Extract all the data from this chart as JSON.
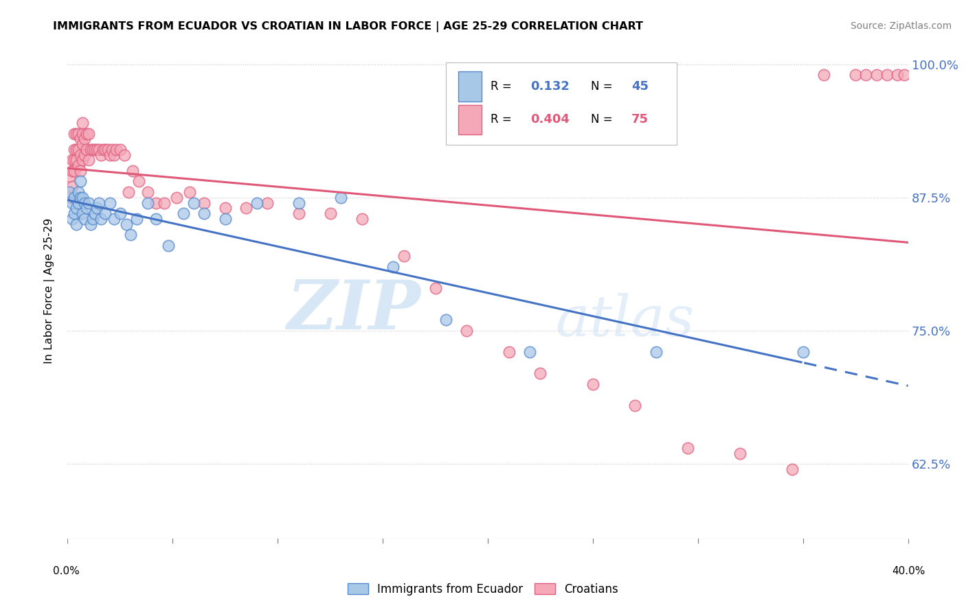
{
  "title": "IMMIGRANTS FROM ECUADOR VS CROATIAN IN LABOR FORCE | AGE 25-29 CORRELATION CHART",
  "source": "Source: ZipAtlas.com",
  "ylabel": "In Labor Force | Age 25-29",
  "y_ticks": [
    0.625,
    0.75,
    0.875,
    1.0
  ],
  "y_tick_labels": [
    "62.5%",
    "75.0%",
    "87.5%",
    "100.0%"
  ],
  "legend_label_blue": "Immigrants from Ecuador",
  "legend_label_pink": "Croatians",
  "R_blue": "0.132",
  "N_blue": "45",
  "R_pink": "0.404",
  "N_pink": "75",
  "color_blue_fill": "#A8C8E8",
  "color_pink_fill": "#F4A8B8",
  "color_blue_edge": "#5588CC",
  "color_pink_edge": "#E06080",
  "color_blue_line": "#4472C4",
  "color_pink_line": "#E05878",
  "color_blue_text": "#4472C4",
  "color_pink_text": "#E05878",
  "blue_scatter_x": [
    0.001,
    0.002,
    0.002,
    0.003,
    0.003,
    0.004,
    0.004,
    0.005,
    0.005,
    0.006,
    0.006,
    0.007,
    0.007,
    0.008,
    0.008,
    0.009,
    0.01,
    0.011,
    0.012,
    0.013,
    0.014,
    0.015,
    0.016,
    0.018,
    0.02,
    0.022,
    0.025,
    0.028,
    0.03,
    0.033,
    0.038,
    0.042,
    0.048,
    0.055,
    0.06,
    0.065,
    0.075,
    0.09,
    0.11,
    0.13,
    0.155,
    0.18,
    0.22,
    0.28,
    0.35
  ],
  "blue_scatter_y": [
    0.88,
    0.87,
    0.855,
    0.86,
    0.875,
    0.865,
    0.85,
    0.88,
    0.87,
    0.89,
    0.875,
    0.86,
    0.875,
    0.855,
    0.87,
    0.865,
    0.87,
    0.85,
    0.855,
    0.86,
    0.865,
    0.87,
    0.855,
    0.86,
    0.87,
    0.855,
    0.86,
    0.85,
    0.84,
    0.855,
    0.87,
    0.855,
    0.83,
    0.86,
    0.87,
    0.86,
    0.855,
    0.87,
    0.87,
    0.875,
    0.81,
    0.76,
    0.73,
    0.73,
    0.73
  ],
  "pink_scatter_x": [
    0.001,
    0.001,
    0.002,
    0.002,
    0.002,
    0.003,
    0.003,
    0.003,
    0.003,
    0.004,
    0.004,
    0.004,
    0.005,
    0.005,
    0.005,
    0.006,
    0.006,
    0.006,
    0.007,
    0.007,
    0.007,
    0.007,
    0.008,
    0.008,
    0.009,
    0.009,
    0.01,
    0.01,
    0.011,
    0.012,
    0.013,
    0.014,
    0.015,
    0.016,
    0.017,
    0.018,
    0.019,
    0.02,
    0.021,
    0.022,
    0.023,
    0.025,
    0.027,
    0.029,
    0.031,
    0.034,
    0.038,
    0.042,
    0.046,
    0.052,
    0.058,
    0.065,
    0.075,
    0.085,
    0.095,
    0.11,
    0.125,
    0.14,
    0.16,
    0.175,
    0.19,
    0.21,
    0.225,
    0.25,
    0.27,
    0.295,
    0.32,
    0.345,
    0.36,
    0.375,
    0.38,
    0.385,
    0.39,
    0.395,
    0.398
  ],
  "pink_scatter_y": [
    0.875,
    0.895,
    0.885,
    0.9,
    0.91,
    0.9,
    0.91,
    0.92,
    0.935,
    0.91,
    0.92,
    0.935,
    0.905,
    0.92,
    0.935,
    0.9,
    0.915,
    0.93,
    0.91,
    0.925,
    0.935,
    0.945,
    0.915,
    0.93,
    0.92,
    0.935,
    0.91,
    0.935,
    0.92,
    0.92,
    0.92,
    0.92,
    0.92,
    0.915,
    0.92,
    0.92,
    0.92,
    0.915,
    0.92,
    0.915,
    0.92,
    0.92,
    0.915,
    0.88,
    0.9,
    0.89,
    0.88,
    0.87,
    0.87,
    0.875,
    0.88,
    0.87,
    0.865,
    0.865,
    0.87,
    0.86,
    0.86,
    0.855,
    0.82,
    0.79,
    0.75,
    0.73,
    0.71,
    0.7,
    0.68,
    0.64,
    0.635,
    0.62,
    0.99,
    0.99,
    0.99,
    0.99,
    0.99,
    0.99,
    0.99
  ],
  "xmin": 0.0,
  "xmax": 0.4,
  "ymin": 0.555,
  "ymax": 1.02,
  "watermark_zip": "ZIP",
  "watermark_atlas": "atlas",
  "figwidth": 14.06,
  "figheight": 8.92
}
